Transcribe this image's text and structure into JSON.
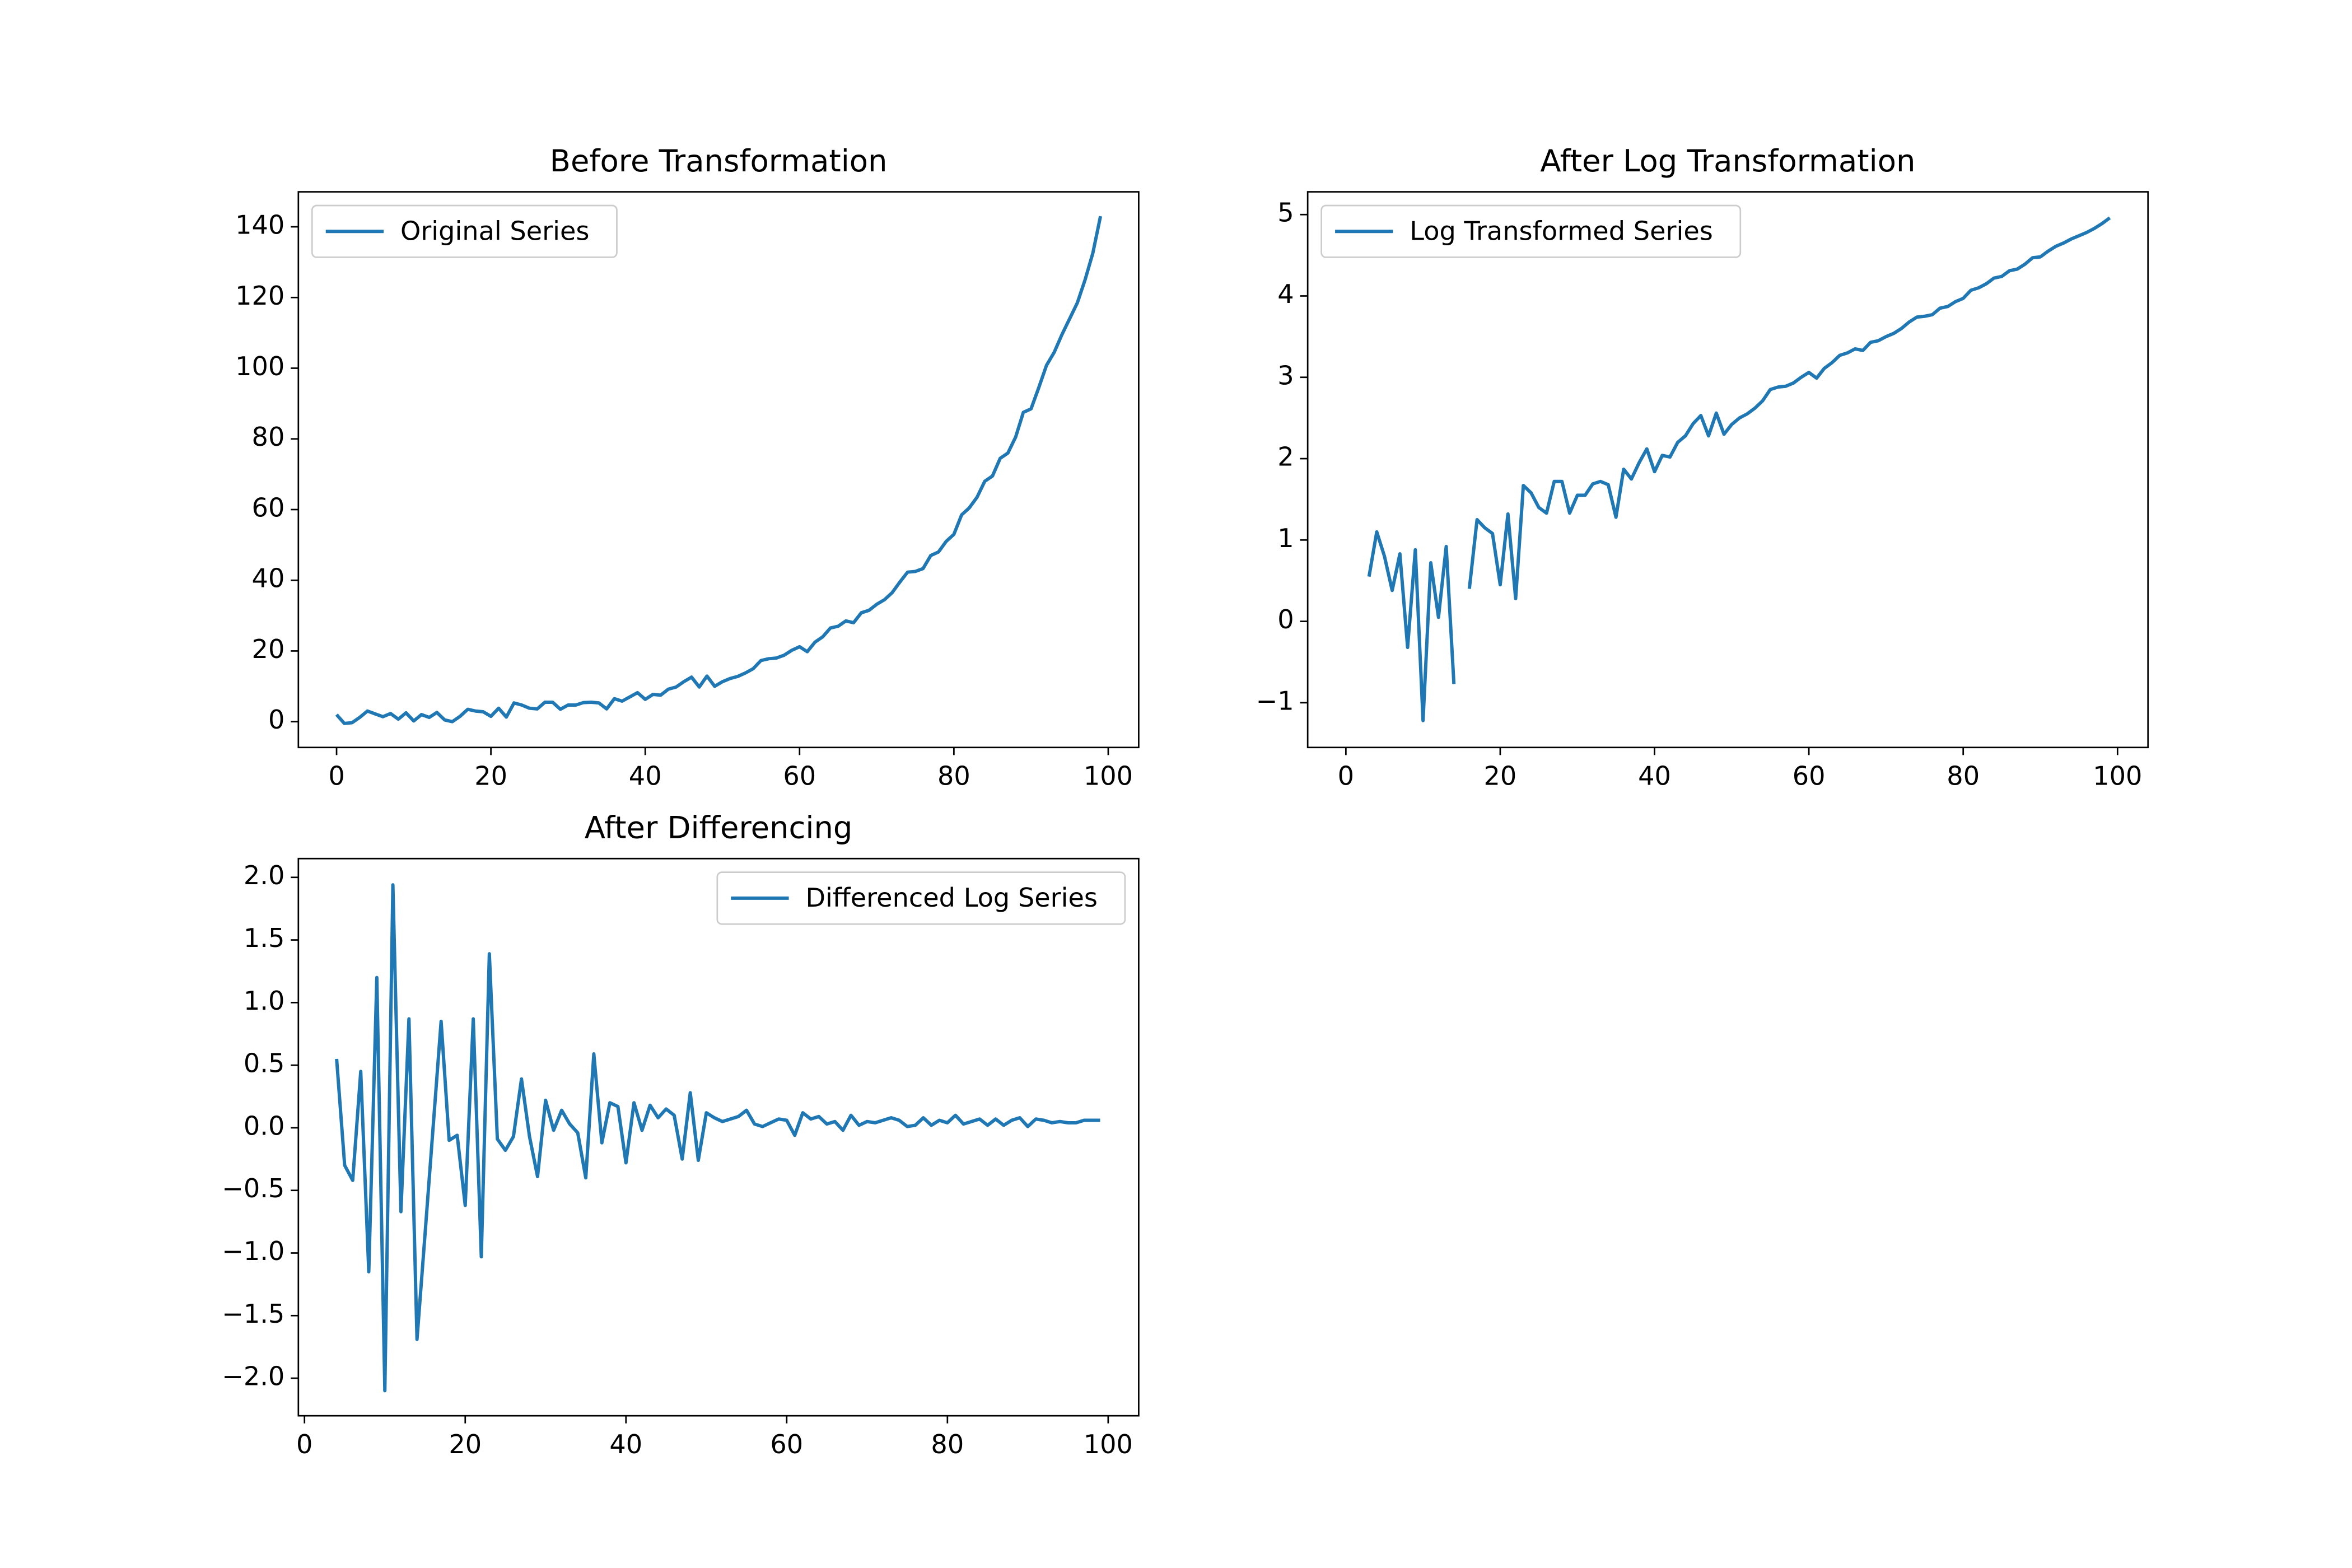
{
  "chart_data": [
    {
      "type": "line",
      "title": "Before Transformation",
      "x": [
        0,
        1,
        2,
        3,
        4,
        5,
        6,
        7,
        8,
        9,
        10,
        11,
        12,
        13,
        14,
        15,
        16,
        17,
        18,
        19,
        20,
        21,
        22,
        23,
        24,
        25,
        26,
        27,
        28,
        29,
        30,
        31,
        32,
        33,
        34,
        35,
        36,
        37,
        38,
        39,
        40,
        41,
        42,
        43,
        44,
        45,
        46,
        47,
        48,
        49,
        50,
        51,
        52,
        53,
        54,
        55,
        56,
        57,
        58,
        59,
        60,
        61,
        62,
        63,
        64,
        65,
        66,
        67,
        68,
        69,
        70,
        71,
        72,
        73,
        74,
        75,
        76,
        77,
        78,
        79,
        80,
        81,
        82,
        83,
        84,
        85,
        86,
        87,
        88,
        89,
        90,
        91,
        92,
        93,
        94,
        95,
        96,
        97,
        98,
        99
      ],
      "series": [
        {
          "name": "Original Series",
          "color": "#1f77b4",
          "values": [
            2,
            -0.5,
            -0.3,
            1.2,
            3,
            2.2,
            1.4,
            2.3,
            0.7,
            2.5,
            0.2,
            2,
            1.2,
            2.6,
            0.5,
            0,
            1.5,
            3.5,
            3,
            2.8,
            1.5,
            3.8,
            1.3,
            5.3,
            4.7,
            3.8,
            3.6,
            5.5,
            5.5,
            3.5,
            4.7,
            4.7,
            5.4,
            5.5,
            5.3,
            3.6,
            6.5,
            5.8,
            7,
            8.2,
            6.3,
            7.7,
            7.5,
            9.2,
            9.8,
            11.3,
            12.6,
            9.8,
            12.9,
            10,
            11.3,
            12.2,
            12.8,
            13.8,
            15,
            17.3,
            17.8,
            18,
            18.8,
            20.2,
            21.2,
            19.8,
            22.5,
            24,
            26.5,
            27,
            28.5,
            28,
            30.8,
            31.5,
            33.2,
            34.5,
            36.5,
            39.5,
            42.3,
            42.5,
            43.3,
            47,
            48,
            51,
            53,
            58.5,
            60.5,
            63.5,
            68,
            69.5,
            74.5,
            76,
            80.5,
            87.5,
            88.5,
            94.5,
            100.8,
            104.5,
            109.5,
            114,
            118.5,
            125,
            132.5,
            143
          ]
        }
      ],
      "xlim": [
        -4.95,
        103.95
      ],
      "ylim": [
        -7.3,
        149.9
      ],
      "xticks": [
        0,
        20,
        40,
        60,
        80,
        100
      ],
      "yticks": [
        0,
        20,
        40,
        60,
        80,
        100,
        120,
        140
      ],
      "legend": "upper left"
    },
    {
      "type": "line",
      "title": "After Log Transformation",
      "x": [
        0,
        1,
        2,
        3,
        4,
        5,
        6,
        7,
        8,
        9,
        10,
        11,
        12,
        13,
        14,
        15,
        16,
        17,
        18,
        19,
        20,
        21,
        22,
        23,
        24,
        25,
        26,
        27,
        28,
        29,
        30,
        31,
        32,
        33,
        34,
        35,
        36,
        37,
        38,
        39,
        40,
        41,
        42,
        43,
        44,
        45,
        46,
        47,
        48,
        49,
        50,
        51,
        52,
        53,
        54,
        55,
        56,
        57,
        58,
        59,
        60,
        61,
        62,
        63,
        64,
        65,
        66,
        67,
        68,
        69,
        70,
        71,
        72,
        73,
        74,
        75,
        76,
        77,
        78,
        79,
        80,
        81,
        82,
        83,
        84,
        85,
        86,
        87,
        88,
        89,
        90,
        91,
        92,
        93,
        94,
        95,
        96,
        97,
        98,
        99
      ],
      "series": [
        {
          "name": "Log Transformed Series",
          "color": "#1f77b4",
          "values": [
            null,
            null,
            null,
            0.55,
            1.1,
            0.8,
            0.38,
            0.83,
            -0.32,
            0.88,
            -1.22,
            0.72,
            0.05,
            0.92,
            -0.77,
            null,
            0.4,
            1.25,
            1.15,
            1.08,
            0.45,
            1.32,
            0.28,
            1.67,
            1.58,
            1.4,
            1.33,
            1.72,
            1.72,
            1.33,
            1.55,
            1.55,
            1.69,
            1.72,
            1.68,
            1.28,
            1.87,
            1.75,
            1.95,
            2.12,
            1.84,
            2.04,
            2.02,
            2.2,
            2.28,
            2.43,
            2.53,
            2.28,
            2.56,
            2.3,
            2.42,
            2.5,
            2.55,
            2.62,
            2.71,
            2.85,
            2.88,
            2.89,
            2.93,
            3.0,
            3.06,
            2.99,
            3.11,
            3.18,
            3.27,
            3.3,
            3.35,
            3.33,
            3.43,
            3.45,
            3.5,
            3.54,
            3.6,
            3.68,
            3.74,
            3.75,
            3.77,
            3.85,
            3.87,
            3.93,
            3.97,
            4.07,
            4.1,
            4.15,
            4.22,
            4.24,
            4.31,
            4.33,
            4.39,
            4.47,
            4.48,
            4.55,
            4.61,
            4.65,
            4.7,
            4.74,
            4.78,
            4.83,
            4.89,
            4.96
          ]
        }
      ],
      "xlim": [
        -4.95,
        103.95
      ],
      "ylim": [
        -1.55,
        5.28
      ],
      "xticks": [
        0,
        20,
        40,
        60,
        80,
        100
      ],
      "yticks": [
        {
          "value": -1,
          "label": "−1"
        },
        0,
        1,
        2,
        3,
        4,
        5
      ],
      "legend": "upper left"
    },
    {
      "type": "line",
      "title": "After Differencing",
      "x": [
        0,
        1,
        2,
        3,
        4,
        5,
        6,
        7,
        8,
        9,
        10,
        11,
        12,
        13,
        14,
        15,
        16,
        17,
        18,
        19,
        20,
        21,
        22,
        23,
        24,
        25,
        26,
        27,
        28,
        29,
        30,
        31,
        32,
        33,
        34,
        35,
        36,
        37,
        38,
        39,
        40,
        41,
        42,
        43,
        44,
        45,
        46,
        47,
        48,
        49,
        50,
        51,
        52,
        53,
        54,
        55,
        56,
        57,
        58,
        59,
        60,
        61,
        62,
        63,
        64,
        65,
        66,
        67,
        68,
        69,
        70,
        71,
        72,
        73,
        74,
        75,
        76,
        77,
        78,
        79,
        80,
        81,
        82,
        83,
        84,
        85,
        86,
        87,
        88,
        89,
        90,
        91,
        92,
        93,
        94,
        95,
        96,
        97,
        98,
        99
      ],
      "series": [
        {
          "name": "Differenced Log Series",
          "color": "#1f77b4",
          "values": [
            null,
            null,
            null,
            null,
            0.55,
            -0.3,
            -0.42,
            0.45,
            -1.15,
            1.2,
            -2.1,
            1.94,
            -0.67,
            0.87,
            -1.69,
            -0.85,
            0.0,
            0.85,
            -0.1,
            -0.06,
            -0.62,
            0.87,
            -1.03,
            1.39,
            -0.09,
            -0.18,
            -0.07,
            0.39,
            -0.07,
            -0.39,
            0.22,
            -0.02,
            0.14,
            0.03,
            -0.04,
            -0.4,
            0.59,
            -0.12,
            0.2,
            0.17,
            -0.28,
            0.2,
            -0.02,
            0.18,
            0.08,
            0.15,
            0.1,
            -0.25,
            0.28,
            -0.26,
            0.12,
            0.08,
            0.05,
            0.07,
            0.09,
            0.14,
            0.03,
            0.01,
            0.04,
            0.07,
            0.06,
            -0.06,
            0.12,
            0.07,
            0.09,
            0.03,
            0.05,
            -0.02,
            0.1,
            0.02,
            0.05,
            0.04,
            0.06,
            0.08,
            0.06,
            0.01,
            0.02,
            0.08,
            0.02,
            0.06,
            0.04,
            0.1,
            0.03,
            0.05,
            0.07,
            0.02,
            0.07,
            0.02,
            0.06,
            0.08,
            0.01,
            0.07,
            0.06,
            0.04,
            0.05,
            0.04,
            0.04,
            0.06,
            0.06,
            0.06
          ]
        }
      ],
      "xlim": [
        -0.76,
        103.8
      ],
      "ylim": [
        -2.3,
        2.15
      ],
      "xticks": [
        0,
        20,
        40,
        60,
        80,
        100
      ],
      "yticks": [
        {
          "value": -2,
          "label": "−2.0"
        },
        {
          "value": -1.5,
          "label": "−1.5"
        },
        {
          "value": -1,
          "label": "−1.0"
        },
        {
          "value": -0.5,
          "label": "−0.5"
        },
        {
          "value": 0,
          "label": "0.0"
        },
        0.5,
        {
          "value": 1,
          "label": "1.0"
        },
        1.5,
        {
          "value": 2,
          "label": "2.0"
        }
      ],
      "legend": "upper right"
    }
  ]
}
